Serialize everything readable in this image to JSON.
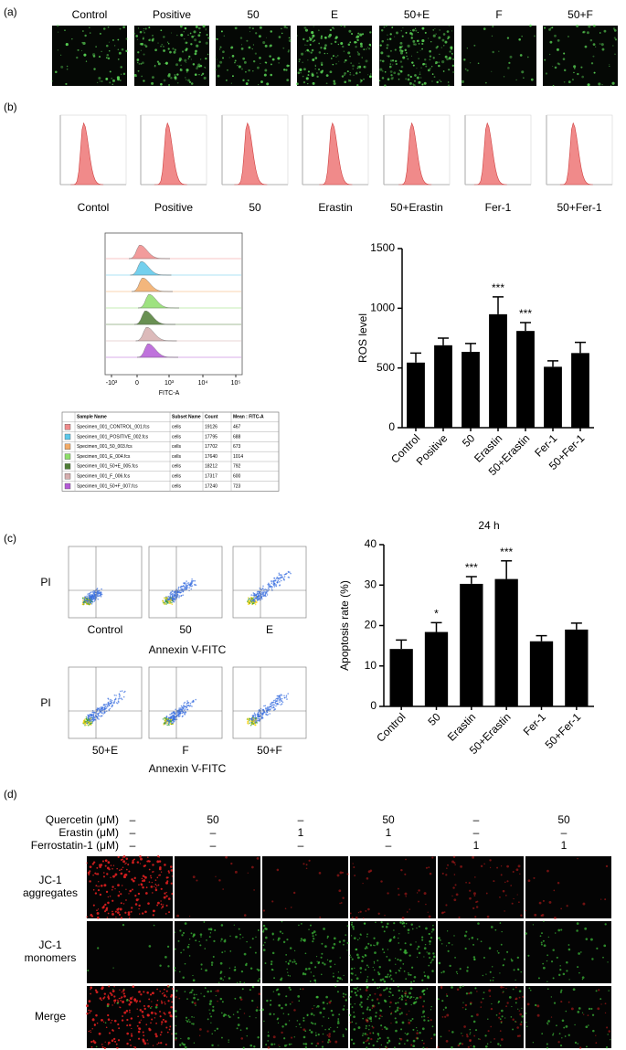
{
  "panel_labels": [
    "(a)",
    "(b)",
    "(c)",
    "(d)"
  ],
  "panel_a": {
    "labels": [
      "Control",
      "Positive",
      "50",
      "E",
      "50+E",
      "F",
      "50+F"
    ]
  },
  "panel_b": {
    "labels": [
      "Contol",
      "Positive",
      "50",
      "Erastin",
      "50+Erastin",
      "Fer-1",
      "50+Fer-1"
    ],
    "overlay": {
      "x_label": "FITC-A",
      "x_tick_labels": [
        "-10³",
        "0",
        "10³",
        "10⁴",
        "10⁵"
      ],
      "colors": [
        "#f08a8a",
        "#5cc8ea",
        "#f2aa66",
        "#8ede6a",
        "#4f7d36",
        "#d6aeae",
        "#b45ad6"
      ]
    },
    "table": {
      "header": [
        "Sample Name",
        "Subset Name",
        "Count",
        "Mean : FITC-A"
      ],
      "rows": [
        [
          "Specimen_001_CONTROL_001.fcs",
          "cells",
          "19126",
          "467"
        ],
        [
          "Specimen_001_POSITIVE_002.fcs",
          "cells",
          "17795",
          "688"
        ],
        [
          "Specimen_001_50_003.fcs",
          "cells",
          "17702",
          "673"
        ],
        [
          "Specimen_001_E_004.fcs",
          "cells",
          "17640",
          "1014"
        ],
        [
          "Specimen_001_50+E_005.fcs",
          "cells",
          "18212",
          "792"
        ],
        [
          "Specimen_001_F_006.fcs",
          "cells",
          "17317",
          "600"
        ],
        [
          "Specimen_001_50+F_007.fcs",
          "cells",
          "17240",
          "723"
        ]
      ]
    }
  },
  "panel_c": {
    "y_label": "PI",
    "x_label": "Annexin V-FITC",
    "labels": [
      "Control",
      "50",
      "E",
      "50+E",
      "F",
      "50+F"
    ]
  },
  "panel_d": {
    "treatments": [
      {
        "name": "Quercetin (μM)",
        "values": [
          "–",
          "50",
          "–",
          "50",
          "–",
          "50"
        ]
      },
      {
        "name": "Erastin (μM)",
        "values": [
          "–",
          "–",
          "1",
          "1",
          "–",
          "–"
        ]
      },
      {
        "name": "Ferrostatin-1 (μM)",
        "values": [
          "–",
          "–",
          "–",
          "–",
          "1",
          "1"
        ]
      }
    ],
    "row_labels": [
      [
        "JC-1",
        "aggregates"
      ],
      [
        "JC-1",
        "monomers"
      ],
      [
        "Merge"
      ]
    ]
  },
  "chart_data": [
    {
      "type": "bar",
      "y_label": "ROS level",
      "color": "#000000",
      "categories": [
        "Control",
        "Positive",
        "50",
        "Erastin",
        "50+Erastin",
        "Fer-1",
        "50+Fer-1"
      ],
      "values": [
        545,
        690,
        635,
        950,
        810,
        510,
        625
      ],
      "errors": [
        80,
        60,
        70,
        145,
        70,
        50,
        90
      ],
      "significance": [
        null,
        null,
        null,
        "***",
        "***",
        null,
        null
      ],
      "ylim": [
        0,
        1500
      ],
      "yticks": [
        0,
        500,
        1000,
        1500
      ]
    },
    {
      "type": "bar",
      "title": "24 h",
      "y_label": "Apoptosis rate (%)",
      "color": "#000000",
      "categories": [
        "Control",
        "50",
        "Erastin",
        "50+Erastin",
        "Fer-1",
        "50+Fer-1"
      ],
      "values": [
        14.2,
        18.4,
        30.3,
        31.5,
        16.1,
        19.0
      ],
      "errors": [
        2.2,
        2.3,
        1.8,
        4.5,
        1.4,
        1.6
      ],
      "significance": [
        null,
        "*",
        "***",
        "***",
        null,
        null
      ],
      "ylim": [
        0,
        40
      ],
      "yticks": [
        0,
        10,
        20,
        30,
        40
      ]
    }
  ]
}
